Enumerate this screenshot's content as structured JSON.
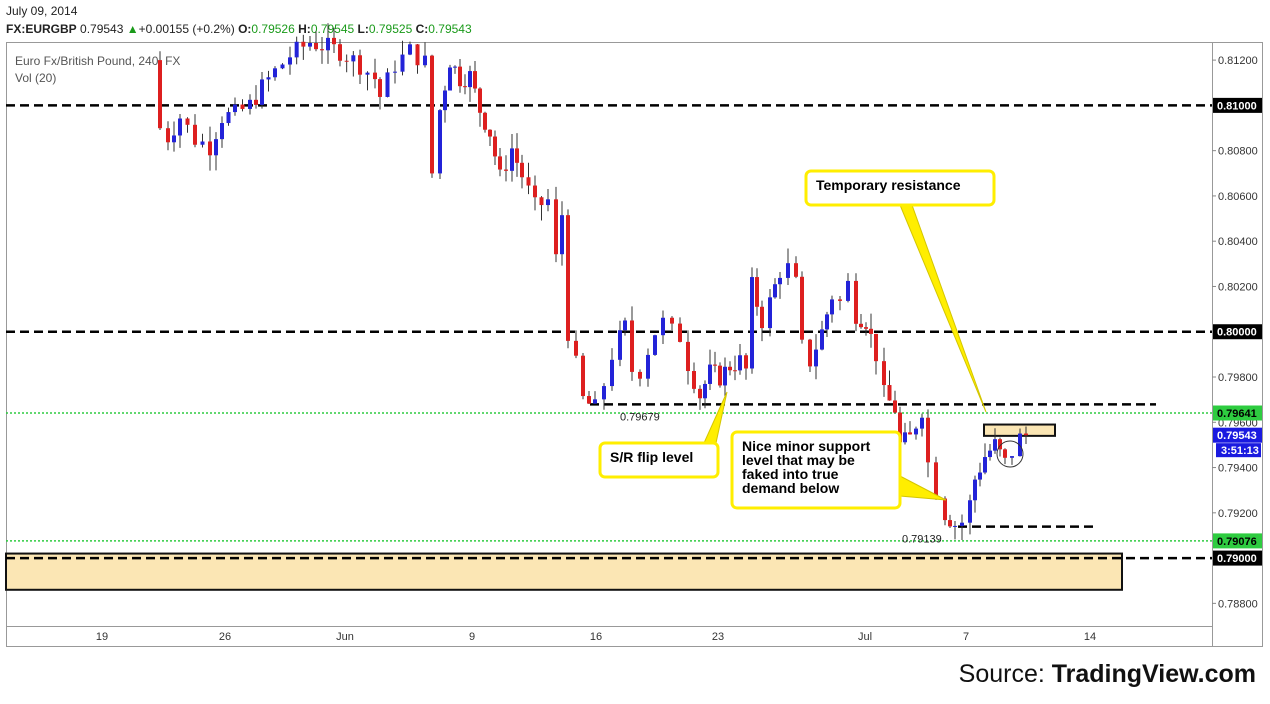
{
  "header": {
    "date": "July 09, 2014",
    "symbol": "FX:EURGBP",
    "last": "0.79543",
    "change": "+0.00155 (+0.2%)",
    "open_label": "O:",
    "open": "0.79526",
    "high_label": "H:",
    "high": "0.79545",
    "low_label": "L:",
    "low": "0.79525",
    "close_label": "C:",
    "close": "0.79543",
    "instrument": "Euro Fx/British Pound, 240, FX",
    "volume": "Vol (20)"
  },
  "source": {
    "prefix": "Source:",
    "brand": "TradingView.com"
  },
  "colors": {
    "bull": "#2323d8",
    "bear": "#dd1f1f",
    "resistance_line": "#000000",
    "green_line": "#2ecc40",
    "callout_border": "#ffee00",
    "zone_fill": "#fbe6b4"
  },
  "chart_data": {
    "type": "candlestick",
    "timeframe": "240",
    "y_range": [
      0.787,
      0.8128
    ],
    "y_ticks": [
      {
        "value": 0.812,
        "label": "0.81200"
      },
      {
        "value": 0.808,
        "label": "0.80800"
      },
      {
        "value": 0.806,
        "label": "0.80600"
      },
      {
        "value": 0.804,
        "label": "0.80400"
      },
      {
        "value": 0.802,
        "label": "0.80200"
      },
      {
        "value": 0.798,
        "label": "0.79800"
      },
      {
        "value": 0.796,
        "label": "0.79600"
      },
      {
        "value": 0.794,
        "label": "0.79400"
      },
      {
        "value": 0.792,
        "label": "0.79200"
      },
      {
        "value": 0.788,
        "label": "0.78800"
      }
    ],
    "x_ticks": [
      "19",
      "26",
      "Jun",
      "9",
      "16",
      "23",
      "Jul",
      "7",
      "14"
    ],
    "price_labels": [
      {
        "value": 0.81,
        "label": "0.81000",
        "style": "dark"
      },
      {
        "value": 0.8,
        "label": "0.80000",
        "style": "dark"
      },
      {
        "value": 0.79641,
        "label": "0.79641",
        "style": "green"
      },
      {
        "value": 0.79543,
        "label": "0.79543",
        "style": "blue"
      },
      {
        "value": 0.79076,
        "label": "0.79076",
        "style": "green"
      },
      {
        "value": 0.79,
        "label": "0.79000",
        "style": "dark"
      }
    ],
    "countdown": "3:51:13",
    "horizontal_levels": [
      {
        "value": 0.81,
        "style": "dashed-black"
      },
      {
        "value": 0.8,
        "style": "dashed-black"
      },
      {
        "value": 0.79679,
        "style": "dashed-black"
      },
      {
        "value": 0.79641,
        "style": "dotted-green"
      },
      {
        "value": 0.79139,
        "style": "dashed-black"
      },
      {
        "value": 0.79076,
        "style": "dotted-green"
      },
      {
        "value": 0.79,
        "style": "dashed-black"
      }
    ],
    "level_labels": [
      {
        "value": 0.79679,
        "label": "0.79679"
      },
      {
        "value": 0.79139,
        "label": "0.79139"
      }
    ],
    "zones": [
      {
        "name": "demand-zone",
        "top": 0.7902,
        "bottom": 0.7886
      },
      {
        "name": "temporary-resistance-zone",
        "top": 0.7959,
        "bottom": 0.7954
      }
    ],
    "annotations": [
      {
        "name": "temporary-resistance",
        "text": [
          "Temporary resistance"
        ]
      },
      {
        "name": "sr-flip-level",
        "text": [
          "S/R flip level"
        ]
      },
      {
        "name": "minor-support",
        "text": [
          "Nice minor support",
          "level that may be",
          "faked into true",
          "demand below"
        ]
      }
    ]
  }
}
